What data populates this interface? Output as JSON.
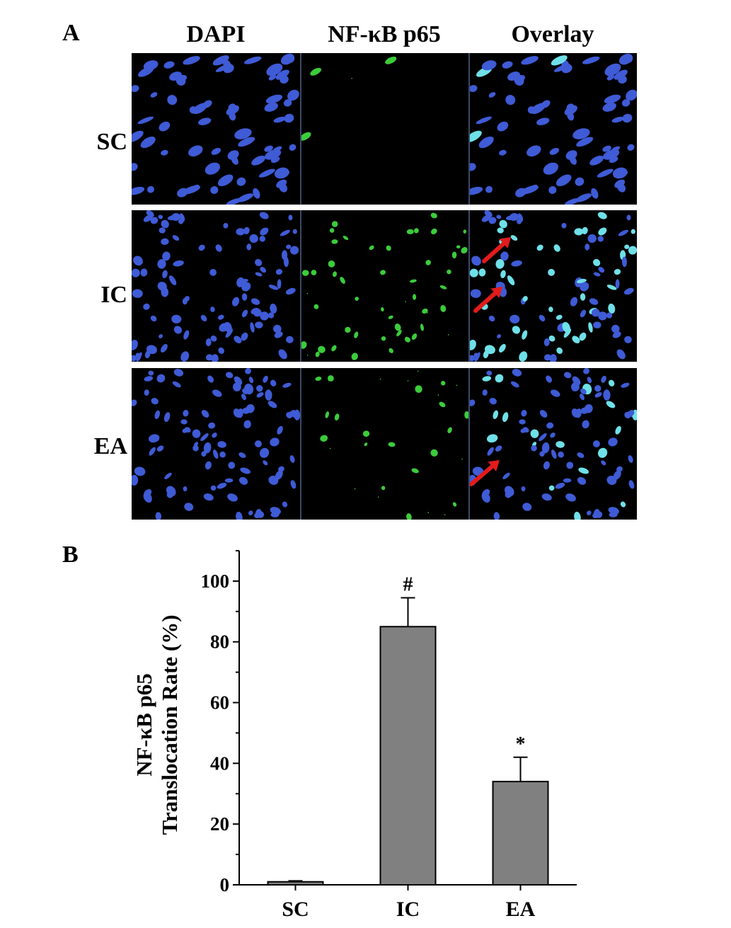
{
  "panel_a": {
    "letter": "A",
    "columns": [
      "DAPI",
      "NF-κB p65",
      "Overlay"
    ],
    "rows": [
      {
        "label": "SC",
        "green_density": 0.05,
        "arrows": 0
      },
      {
        "label": "IC",
        "green_density": 1.0,
        "arrows": 2
      },
      {
        "label": "EA",
        "green_density": 0.45,
        "arrows": 1
      }
    ],
    "colors": {
      "dapi": "#3f5bd6",
      "p65": "#3bcc3b",
      "overlay": "#6fe0e8",
      "arrow": "#e21b1b"
    }
  },
  "panel_b": {
    "letter": "B",
    "chart_data": {
      "type": "bar",
      "categories": [
        "SC",
        "IC",
        "EA"
      ],
      "values": [
        1,
        85,
        34
      ],
      "errors": [
        0.3,
        9.5,
        8
      ],
      "annotations": [
        "",
        "#",
        "*"
      ],
      "ylabel_line1": "NF-κB p65",
      "ylabel_line2": "Translocation Rate (%)",
      "ylim": [
        0,
        110
      ],
      "yticks": [
        "0",
        "20",
        "40",
        "60",
        "80",
        "100"
      ],
      "bar_color": "#808080",
      "grid": false
    }
  }
}
